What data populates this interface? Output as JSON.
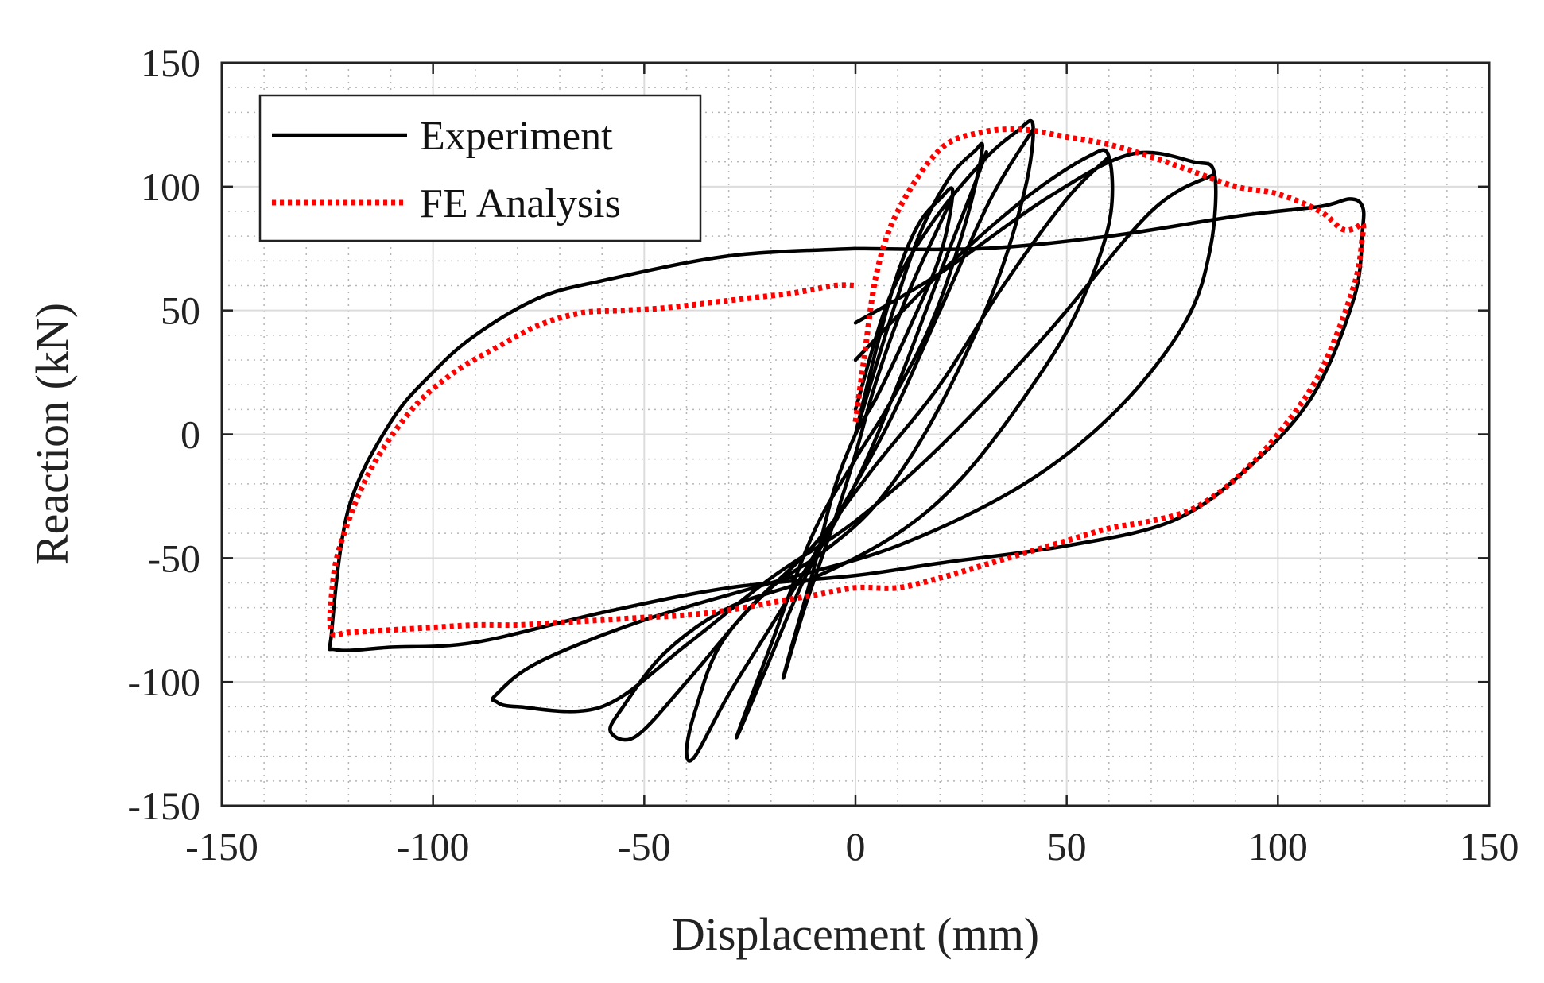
{
  "chart_data": {
    "type": "line",
    "title": "",
    "xlabel": "Displacement (mm)",
    "ylabel": "Reaction (kN)",
    "xlim": [
      -150,
      150
    ],
    "ylim": [
      -150,
      150
    ],
    "x_ticks": [
      -150,
      -100,
      -50,
      0,
      50,
      100,
      150
    ],
    "y_ticks": [
      -150,
      -100,
      -50,
      0,
      50,
      100,
      150
    ],
    "x_tick_labels": [
      "-150",
      "-100",
      "-50",
      "0",
      "50",
      "100",
      "150"
    ],
    "y_tick_labels": [
      "-150",
      "-100",
      "-50",
      "0",
      "50",
      "100",
      "150"
    ],
    "grid": true,
    "minor_grid": true,
    "legend_position": "top-left",
    "series": [
      {
        "name": "Experiment",
        "color": "#000000",
        "style": "solid",
        "loops": [
          {
            "x": [
              0,
              5,
              10,
              15,
              20,
              23,
              20,
              12,
              5,
              0,
              -5,
              -10,
              -15,
              -17,
              -12,
              -5,
              0,
              5,
              12,
              20,
              23
            ],
            "y": [
              0,
              35,
              65,
              85,
              95,
              98,
              72,
              40,
              15,
              0,
              -22,
              -55,
              -85,
              -98,
              -70,
              -35,
              -8,
              22,
              55,
              85,
              96
            ]
          },
          {
            "x": [
              0,
              8,
              15,
              22,
              28,
              30,
              26,
              18,
              8,
              0,
              -10,
              -20,
              -26,
              -28,
              -22,
              -12,
              0,
              10,
              20,
              28,
              31
            ],
            "y": [
              0,
              45,
              80,
              103,
              114,
              115,
              85,
              45,
              12,
              -10,
              -40,
              -85,
              -112,
              -122,
              -98,
              -58,
              -20,
              20,
              65,
              100,
              114
            ]
          },
          {
            "x": [
              0,
              8,
              18,
              30,
              38,
              42,
              40,
              32,
              18,
              5,
              -8,
              -20,
              -32,
              -38,
              -40,
              -38,
              -30,
              -18,
              -5,
              8,
              20,
              32,
              42
            ],
            "y": [
              10,
              55,
              85,
              110,
              122,
              125,
              98,
              55,
              5,
              -28,
              -48,
              -62,
              -85,
              -112,
              -128,
              -130,
              -105,
              -72,
              -35,
              5,
              50,
              95,
              123
            ]
          },
          {
            "x": [
              0,
              20,
              40,
              55,
              60,
              60,
              52,
              40,
              25,
              10,
              -10,
              -30,
              -45,
              -55,
              -58,
              -52,
              -40,
              -25,
              -10,
              5,
              20,
              35,
              50,
              60
            ],
            "y": [
              30,
              65,
              95,
              112,
              112,
              85,
              48,
              15,
              -18,
              -40,
              -58,
              -70,
              -88,
              -110,
              -120,
              -122,
              -100,
              -70,
              -45,
              -12,
              20,
              60,
              95,
              112
            ]
          },
          {
            "x": [
              0,
              20,
              45,
              65,
              80,
              85,
              84,
              78,
              62,
              40,
              10,
              -20,
              -50,
              -75,
              -85,
              -85,
              -80,
              -60,
              -40,
              -20,
              0,
              20,
              45,
              70,
              85
            ],
            "y": [
              45,
              65,
              95,
              113,
              110,
              105,
              75,
              45,
              10,
              -20,
              -45,
              -60,
              -75,
              -92,
              -105,
              -108,
              -110,
              -110,
              -85,
              -58,
              -35,
              -5,
              40,
              90,
              105
            ]
          },
          {
            "x": [
              0,
              30,
              60,
              90,
              110,
              117,
              120,
              120,
              118,
              108,
              92,
              75,
              50,
              20,
              0,
              -30,
              -60,
              -90,
              -110,
              -123,
              -124,
              -120,
              -110,
              -100,
              -90,
              -75,
              -60,
              -30,
              0
            ],
            "y": [
              75,
              75,
              80,
              88,
              92,
              95,
              92,
              82,
              55,
              15,
              -15,
              -35,
              -45,
              -52,
              -57,
              -62,
              -72,
              -84,
              -86,
              -87,
              -80,
              -30,
              5,
              25,
              40,
              55,
              62,
              72,
              75
            ]
          }
        ]
      },
      {
        "name": "FE Analysis",
        "color": "#ff0000",
        "style": "dotted",
        "loops": [
          {
            "x": [
              0,
              2,
              5,
              10,
              20,
              30,
              40,
              50,
              60,
              70,
              80,
              90,
              100,
              110,
              115,
              118,
              120,
              120,
              118,
              110,
              100,
              90,
              80,
              70,
              60,
              50,
              40,
              30,
              20,
              10,
              0,
              -10,
              -20,
              -30,
              -40,
              -50,
              -60,
              -70,
              -80,
              -90,
              -100,
              -110,
              -120,
              -124,
              -124,
              -122,
              -115,
              -105,
              -95,
              -85,
              -75,
              -65,
              -55,
              -45,
              -35,
              -25,
              -15,
              -5,
              0
            ],
            "y": [
              5,
              30,
              65,
              90,
              115,
              122,
              123,
              120,
              117,
              112,
              106,
              100,
              97,
              90,
              83,
              83,
              85,
              80,
              60,
              25,
              0,
              -18,
              -30,
              -35,
              -38,
              -43,
              -48,
              -53,
              -58,
              -62,
              -62,
              -65,
              -68,
              -71,
              -73,
              -74,
              -75,
              -76,
              -77,
              -77,
              -78,
              -79,
              -80,
              -80,
              -65,
              -45,
              -15,
              10,
              25,
              35,
              44,
              49,
              50,
              51,
              53,
              55,
              57,
              60,
              60
            ]
          }
        ]
      }
    ]
  }
}
